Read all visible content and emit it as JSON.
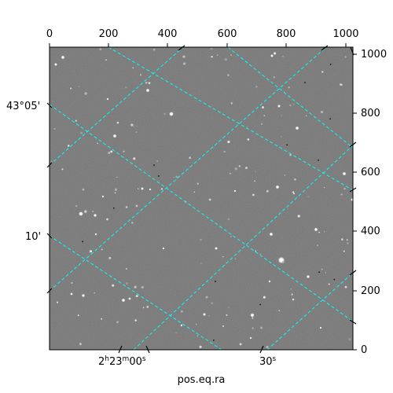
{
  "figure": {
    "x_axis_title": "pos.eq.ra",
    "top_ticks": [
      "0",
      "200",
      "400",
      "600",
      "800",
      "1000"
    ],
    "right_ticks": [
      "0",
      "200",
      "400",
      "600",
      "800",
      "1000"
    ],
    "bottom_ra_labels": {
      "ra1": {
        "h": "2",
        "hs": "h",
        "m": "23",
        "ms": "m",
        "s": "00",
        "ss": "s"
      },
      "ra2": {
        "s": "30",
        "ss": "s"
      }
    },
    "left_dec_labels": [
      "43°05'",
      "10'"
    ],
    "colors": {
      "grid": "#00ffff",
      "sky": "#7a7a7a",
      "frame": "#000000"
    }
  }
}
